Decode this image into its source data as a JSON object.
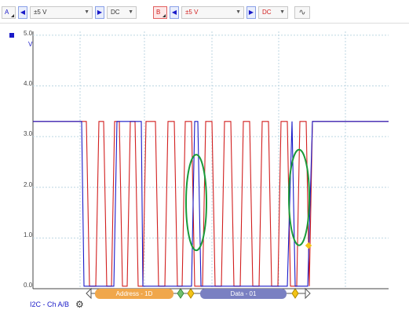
{
  "toolbar": {
    "channel_a": {
      "label": "A",
      "range": "±5 V",
      "coupling": "DC"
    },
    "channel_b": {
      "label": "B",
      "range": "±5 V",
      "coupling": "DC"
    }
  },
  "plot": {
    "unit": "V",
    "y_ticks": [
      "5.0",
      "4.0",
      "3.0",
      "2.0",
      "1.0",
      "0.0"
    ]
  },
  "decoder": {
    "label": "I2C - Ch A/B",
    "packets": [
      {
        "name": "address",
        "text": "Address - 1D"
      },
      {
        "name": "data",
        "text": "Data - 01"
      }
    ]
  },
  "colors": {
    "channel_a": "#1a1ac8",
    "channel_b": "#d21e1e",
    "grid": "#bcd6e2",
    "highlight": "#1a9a3a",
    "address_packet": "#f0a74b",
    "data_packet": "#7a80c2",
    "marker": "#f3c317"
  }
}
